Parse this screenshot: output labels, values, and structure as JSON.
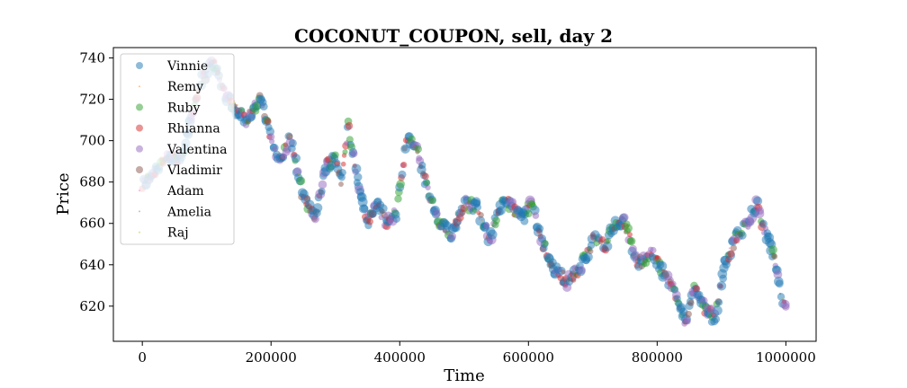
{
  "chart_data": {
    "type": "scatter",
    "title": "COCONUT_COUPON, sell, day 2",
    "xlabel": "Time",
    "ylabel": "Price",
    "xlim": [
      -45000,
      1047000
    ],
    "ylim": [
      603,
      745
    ],
    "x_ticks": [
      0,
      200000,
      400000,
      600000,
      800000,
      1000000
    ],
    "x_tick_labels": [
      "0",
      "200000",
      "400000",
      "600000",
      "800000",
      "1000000"
    ],
    "y_ticks": [
      620,
      640,
      660,
      680,
      700,
      720,
      740
    ],
    "y_tick_labels": [
      "620",
      "640",
      "660",
      "680",
      "700",
      "720",
      "740"
    ],
    "grid": false,
    "legend_position": "upper-left",
    "price_path": [
      [
        0,
        678
      ],
      [
        30000,
        690
      ],
      [
        60000,
        692
      ],
      [
        90000,
        728
      ],
      [
        110000,
        738
      ],
      [
        130000,
        722
      ],
      [
        160000,
        710
      ],
      [
        185000,
        720
      ],
      [
        200000,
        700
      ],
      [
        215000,
        690
      ],
      [
        230000,
        702
      ],
      [
        250000,
        672
      ],
      [
        270000,
        664
      ],
      [
        285000,
        688
      ],
      [
        300000,
        692
      ],
      [
        310000,
        680
      ],
      [
        320000,
        708
      ],
      [
        335000,
        680
      ],
      [
        350000,
        660
      ],
      [
        365000,
        670
      ],
      [
        380000,
        660
      ],
      [
        395000,
        665
      ],
      [
        410000,
        700
      ],
      [
        425000,
        698
      ],
      [
        440000,
        680
      ],
      [
        460000,
        660
      ],
      [
        480000,
        655
      ],
      [
        500000,
        670
      ],
      [
        520000,
        668
      ],
      [
        540000,
        652
      ],
      [
        555000,
        668
      ],
      [
        570000,
        670
      ],
      [
        590000,
        662
      ],
      [
        605000,
        670
      ],
      [
        620000,
        652
      ],
      [
        640000,
        638
      ],
      [
        660000,
        632
      ],
      [
        680000,
        638
      ],
      [
        700000,
        652
      ],
      [
        720000,
        650
      ],
      [
        735000,
        660
      ],
      [
        750000,
        660
      ],
      [
        770000,
        640
      ],
      [
        790000,
        646
      ],
      [
        810000,
        636
      ],
      [
        830000,
        626
      ],
      [
        845000,
        612
      ],
      [
        860000,
        630
      ],
      [
        875000,
        618
      ],
      [
        890000,
        614
      ],
      [
        905000,
        640
      ],
      [
        920000,
        652
      ],
      [
        940000,
        660
      ],
      [
        955000,
        670
      ],
      [
        965000,
        658
      ],
      [
        980000,
        645
      ],
      [
        995000,
        622
      ],
      [
        1000000,
        620
      ]
    ],
    "series": [
      {
        "name": "Vinnie",
        "color": "#1f77b4",
        "share": 0.4,
        "size_range": [
          4.0,
          5.5
        ]
      },
      {
        "name": "Remy",
        "color": "#ff7f0e",
        "share": 0.02,
        "size_range": [
          0.8,
          1.2
        ]
      },
      {
        "name": "Ruby",
        "color": "#2ca02c",
        "share": 0.15,
        "size_range": [
          3.0,
          5.0
        ]
      },
      {
        "name": "Rhianna",
        "color": "#d62728",
        "share": 0.13,
        "size_range": [
          2.5,
          4.5
        ]
      },
      {
        "name": "Valentina",
        "color": "#9467bd",
        "share": 0.16,
        "size_range": [
          3.0,
          5.5
        ]
      },
      {
        "name": "Vladimir",
        "color": "#8c564b",
        "share": 0.08,
        "size_range": [
          2.5,
          4.0
        ]
      },
      {
        "name": "Adam",
        "color": "#e377c2",
        "share": 0.02,
        "size_range": [
          0.8,
          1.3
        ]
      },
      {
        "name": "Amelia",
        "color": "#7f7f7f",
        "share": 0.02,
        "size_range": [
          0.8,
          1.3
        ]
      },
      {
        "name": "Raj",
        "color": "#bcbd22",
        "share": 0.02,
        "size_range": [
          0.8,
          1.3
        ]
      }
    ]
  }
}
